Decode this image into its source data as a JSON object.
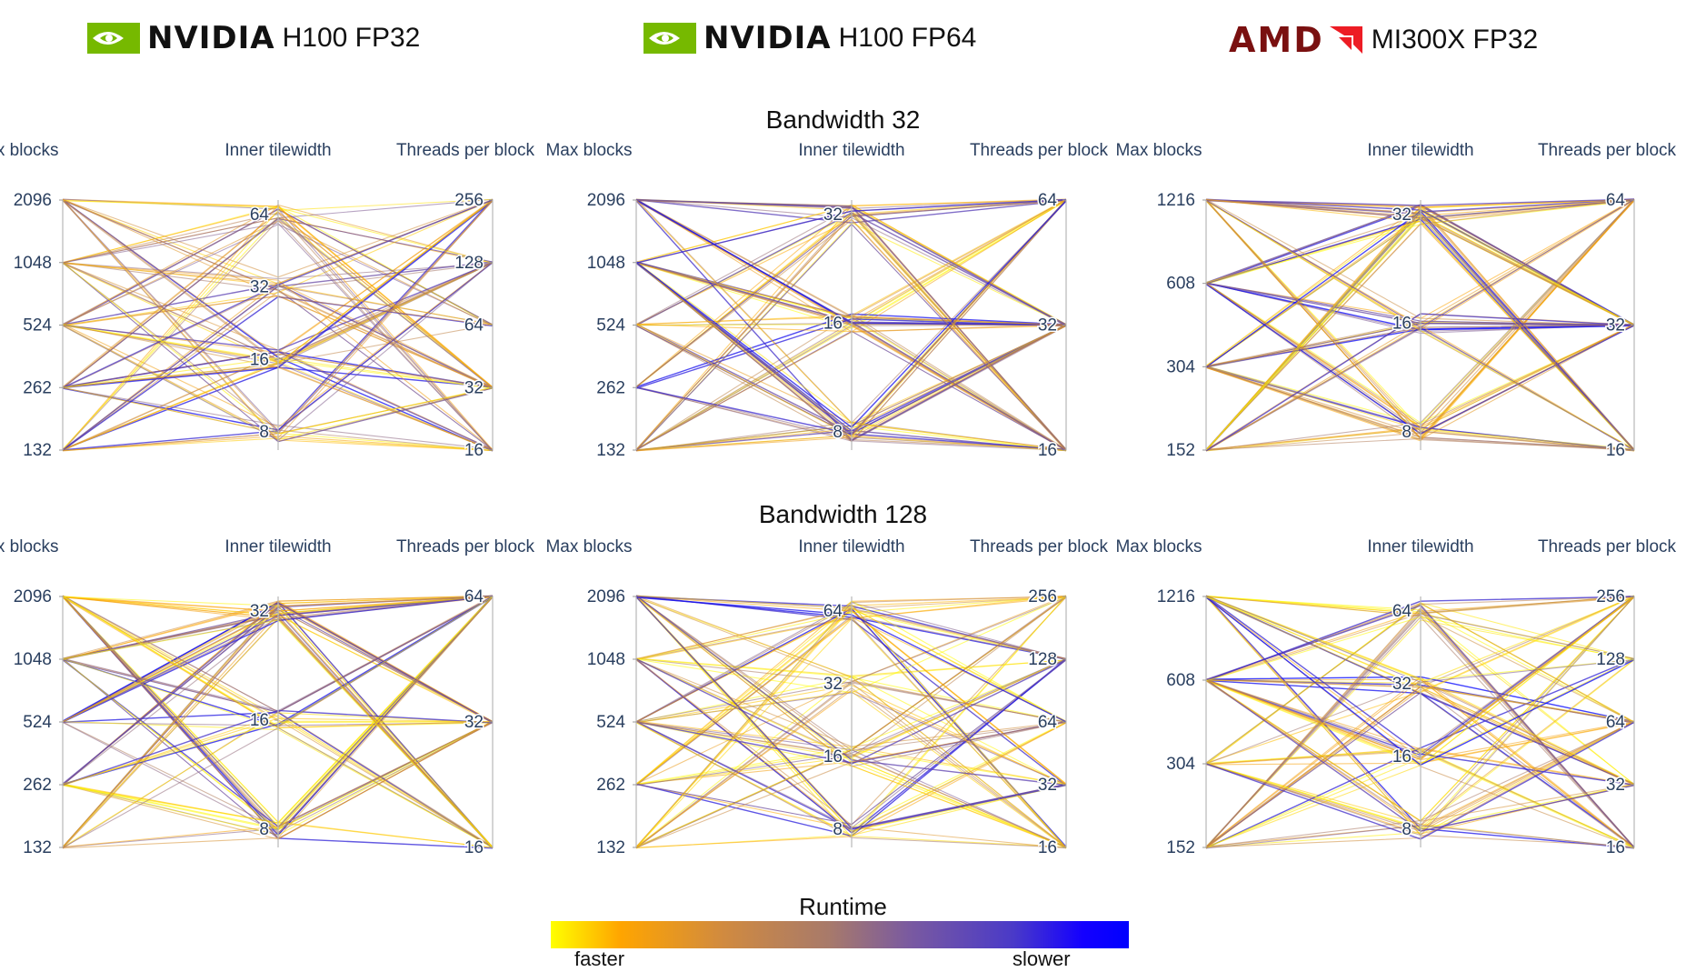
{
  "headers": [
    {
      "brand": "NVIDIA",
      "gpu": "H100 FP32",
      "logo": "nvidia-eye-logo"
    },
    {
      "brand": "NVIDIA",
      "gpu": "H100 FP64",
      "logo": "nvidia-eye-logo"
    },
    {
      "brand": "AMD",
      "gpu": "MI300X FP32",
      "logo": "amd-arrow-logo"
    }
  ],
  "row_titles": [
    "Bandwidth 32",
    "Bandwidth 128"
  ],
  "legend": {
    "title": "Runtime",
    "low_label": "faster",
    "high_label": "slower",
    "colors": [
      "#ffff00",
      "#ffa500",
      "#b07a5a",
      "#6a4aa8",
      "#0000ff"
    ]
  },
  "colors": {
    "nvidia_green": "#76b900",
    "amd_red": "#ed1c24",
    "axis_text": "#2a3f5f"
  },
  "chart_data": [
    {
      "type": "parallel_coordinates",
      "row": "Bandwidth 32",
      "column": "H100 FP32",
      "axes": [
        {
          "label": "Max blocks",
          "ticks": [
            "132",
            "262",
            "524",
            "1048",
            "2096"
          ]
        },
        {
          "label": "Inner tilewidth",
          "ticks": [
            "8",
            "16",
            "32",
            "64"
          ]
        },
        {
          "label": "Threads per block",
          "ticks": [
            "16",
            "32",
            "64",
            "128",
            "256"
          ]
        }
      ]
    },
    {
      "type": "parallel_coordinates",
      "row": "Bandwidth 32",
      "column": "H100 FP64",
      "axes": [
        {
          "label": "Max blocks",
          "ticks": [
            "132",
            "262",
            "524",
            "1048",
            "2096"
          ]
        },
        {
          "label": "Inner tilewidth",
          "ticks": [
            "8",
            "16",
            "32"
          ]
        },
        {
          "label": "Threads per block",
          "ticks": [
            "16",
            "32",
            "64"
          ]
        }
      ]
    },
    {
      "type": "parallel_coordinates",
      "row": "Bandwidth 32",
      "column": "MI300X FP32",
      "axes": [
        {
          "label": "Max blocks",
          "ticks": [
            "152",
            "304",
            "608",
            "1216"
          ]
        },
        {
          "label": "Inner tilewidth",
          "ticks": [
            "8",
            "16",
            "32"
          ]
        },
        {
          "label": "Threads per block",
          "ticks": [
            "16",
            "32",
            "64"
          ]
        }
      ]
    },
    {
      "type": "parallel_coordinates",
      "row": "Bandwidth 128",
      "column": "H100 FP32",
      "axes": [
        {
          "label": "Max blocks",
          "ticks": [
            "132",
            "262",
            "524",
            "1048",
            "2096"
          ]
        },
        {
          "label": "Inner tilewidth",
          "ticks": [
            "8",
            "16",
            "32"
          ]
        },
        {
          "label": "Threads per block",
          "ticks": [
            "16",
            "32",
            "64"
          ]
        }
      ]
    },
    {
      "type": "parallel_coordinates",
      "row": "Bandwidth 128",
      "column": "H100 FP64",
      "axes": [
        {
          "label": "Max blocks",
          "ticks": [
            "132",
            "262",
            "524",
            "1048",
            "2096"
          ]
        },
        {
          "label": "Inner tilewidth",
          "ticks": [
            "8",
            "16",
            "32",
            "64"
          ]
        },
        {
          "label": "Threads per block",
          "ticks": [
            "16",
            "32",
            "64",
            "128",
            "256"
          ]
        }
      ]
    },
    {
      "type": "parallel_coordinates",
      "row": "Bandwidth 128",
      "column": "MI300X FP32",
      "axes": [
        {
          "label": "Max blocks",
          "ticks": [
            "152",
            "304",
            "608",
            "1216"
          ]
        },
        {
          "label": "Inner tilewidth",
          "ticks": [
            "8",
            "16",
            "32",
            "64"
          ]
        },
        {
          "label": "Threads per block",
          "ticks": [
            "16",
            "32",
            "64",
            "128",
            "256"
          ]
        }
      ]
    }
  ]
}
